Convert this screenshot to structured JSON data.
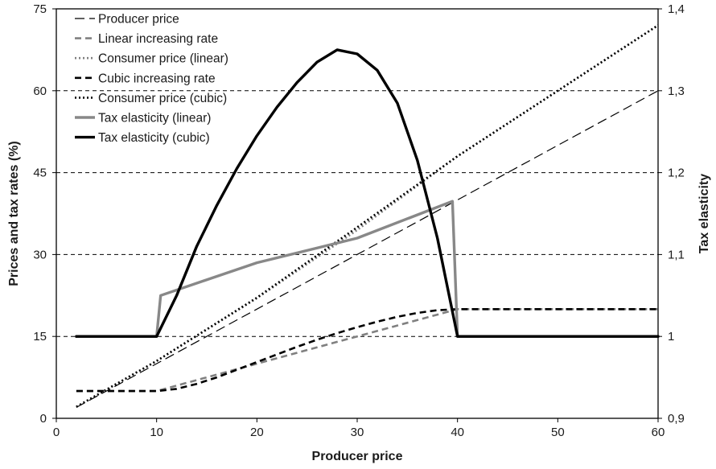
{
  "chart_data": {
    "type": "line",
    "title": "",
    "xlabel": "Producer price",
    "ylabel": "Prices and tax rates (%)",
    "y2label": "Tax elasticity",
    "xlim": [
      0,
      60
    ],
    "ylim": [
      0,
      75
    ],
    "y2lim": [
      0.9,
      1.4
    ],
    "x_ticks": [
      0,
      10,
      20,
      30,
      40,
      50,
      60
    ],
    "y_ticks": [
      0,
      15,
      30,
      45,
      60,
      75
    ],
    "y2_ticks": [
      "0,9",
      "1",
      "1,1",
      "1,2",
      "1,3",
      "1,4"
    ],
    "grid": "horizontal dashed",
    "legend_position": "top-left",
    "series": [
      {
        "name": "Producer price",
        "axis": "left",
        "style": "long-dash",
        "color": "#000000",
        "points": [
          [
            2,
            2
          ],
          [
            60,
            60
          ]
        ]
      },
      {
        "name": "Linear increasing rate",
        "axis": "left",
        "style": "dash",
        "color": "#808080",
        "points": [
          [
            2,
            5
          ],
          [
            10,
            5
          ],
          [
            20,
            10
          ],
          [
            30,
            15
          ],
          [
            40,
            20
          ],
          [
            60,
            20
          ]
        ]
      },
      {
        "name": "Consumer price (linear)",
        "axis": "left",
        "style": "dot",
        "color": "#808080",
        "points": [
          [
            2,
            2.1
          ],
          [
            10,
            10.5
          ],
          [
            20,
            22
          ],
          [
            30,
            34.5
          ],
          [
            40,
            48
          ],
          [
            60,
            72
          ]
        ]
      },
      {
        "name": "Cubic increasing rate",
        "axis": "left",
        "style": "dash",
        "color": "#000000",
        "points": [
          [
            2,
            5
          ],
          [
            10,
            5
          ],
          [
            12,
            5.4
          ],
          [
            14,
            6.3
          ],
          [
            16,
            7.5
          ],
          [
            18,
            8.9
          ],
          [
            20,
            10.3
          ],
          [
            22,
            11.7
          ],
          [
            24,
            13.1
          ],
          [
            26,
            14.4
          ],
          [
            28,
            15.6
          ],
          [
            30,
            16.7
          ],
          [
            32,
            17.7
          ],
          [
            34,
            18.6
          ],
          [
            36,
            19.3
          ],
          [
            38,
            19.8
          ],
          [
            40,
            20
          ],
          [
            60,
            20
          ]
        ]
      },
      {
        "name": "Consumer price (cubic)",
        "axis": "left",
        "style": "dot",
        "color": "#000000",
        "points": [
          [
            2,
            2.1
          ],
          [
            10,
            10.5
          ],
          [
            20,
            22.1
          ],
          [
            30,
            35
          ],
          [
            40,
            48
          ],
          [
            60,
            72
          ]
        ]
      },
      {
        "name": "Tax elasticity (linear)",
        "axis": "right",
        "style": "solid-thick",
        "color": "#888888",
        "points": [
          [
            2,
            1.0
          ],
          [
            10,
            1.0
          ],
          [
            10.4,
            1.05
          ],
          [
            20,
            1.09
          ],
          [
            30,
            1.12
          ],
          [
            39.5,
            1.165
          ],
          [
            40,
            1.0
          ],
          [
            60,
            1.0
          ]
        ]
      },
      {
        "name": "Tax elasticity (cubic)",
        "axis": "right",
        "style": "solid-thick",
        "color": "#000000",
        "points": [
          [
            2,
            1.0
          ],
          [
            10,
            1.0
          ],
          [
            12,
            1.05
          ],
          [
            14,
            1.11
          ],
          [
            16,
            1.16
          ],
          [
            18,
            1.205
          ],
          [
            20,
            1.245
          ],
          [
            22,
            1.28
          ],
          [
            24,
            1.31
          ],
          [
            26,
            1.335
          ],
          [
            28,
            1.35
          ],
          [
            30,
            1.345
          ],
          [
            32,
            1.325
          ],
          [
            34,
            1.285
          ],
          [
            36,
            1.215
          ],
          [
            38,
            1.12
          ],
          [
            40,
            1.0
          ],
          [
            60,
            1.0
          ]
        ]
      }
    ]
  }
}
